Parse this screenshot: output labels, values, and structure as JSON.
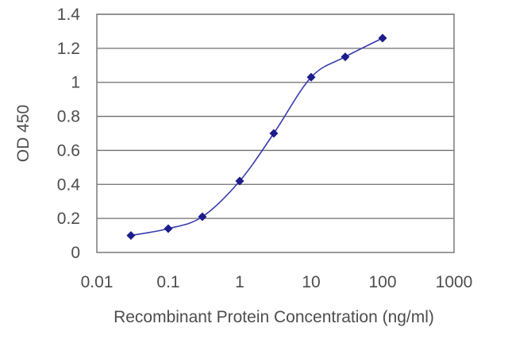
{
  "chart_data": {
    "type": "scatter",
    "title": "",
    "xlabel": "Recombinant Protein Concentration (ng/ml)",
    "ylabel": "OD 450",
    "x_scale": "log",
    "xlim": [
      0.01,
      1000
    ],
    "ylim": [
      0,
      1.4
    ],
    "x_ticks": [
      {
        "value": 0.01,
        "label": "0.01"
      },
      {
        "value": 0.1,
        "label": "0.1"
      },
      {
        "value": 1,
        "label": "1"
      },
      {
        "value": 10,
        "label": "10"
      },
      {
        "value": 100,
        "label": "100"
      },
      {
        "value": 1000,
        "label": "1000"
      }
    ],
    "y_ticks": [
      {
        "value": 0,
        "label": "0"
      },
      {
        "value": 0.2,
        "label": "0.2"
      },
      {
        "value": 0.4,
        "label": "0.4"
      },
      {
        "value": 0.6,
        "label": "0.6"
      },
      {
        "value": 0.8,
        "label": "0.8"
      },
      {
        "value": 1.0,
        "label": "1"
      },
      {
        "value": 1.2,
        "label": "1.2"
      },
      {
        "value": 1.4,
        "label": "1.4"
      }
    ],
    "grid": "horizontal",
    "legend": "none",
    "series": [
      {
        "points": [
          {
            "x": 0.03,
            "y": 0.1
          },
          {
            "x": 0.1,
            "y": 0.14
          },
          {
            "x": 0.3,
            "y": 0.21
          },
          {
            "x": 1,
            "y": 0.42
          },
          {
            "x": 3,
            "y": 0.7
          },
          {
            "x": 10,
            "y": 1.03
          },
          {
            "x": 30,
            "y": 1.15
          },
          {
            "x": 100,
            "y": 1.26
          }
        ],
        "color": "#1c1c8c",
        "marker": "diamond",
        "line": "smooth"
      }
    ],
    "colors": {
      "grid": "#6e6e6e",
      "frame": "#7a7a7a",
      "text": "#4d4d4d"
    }
  }
}
